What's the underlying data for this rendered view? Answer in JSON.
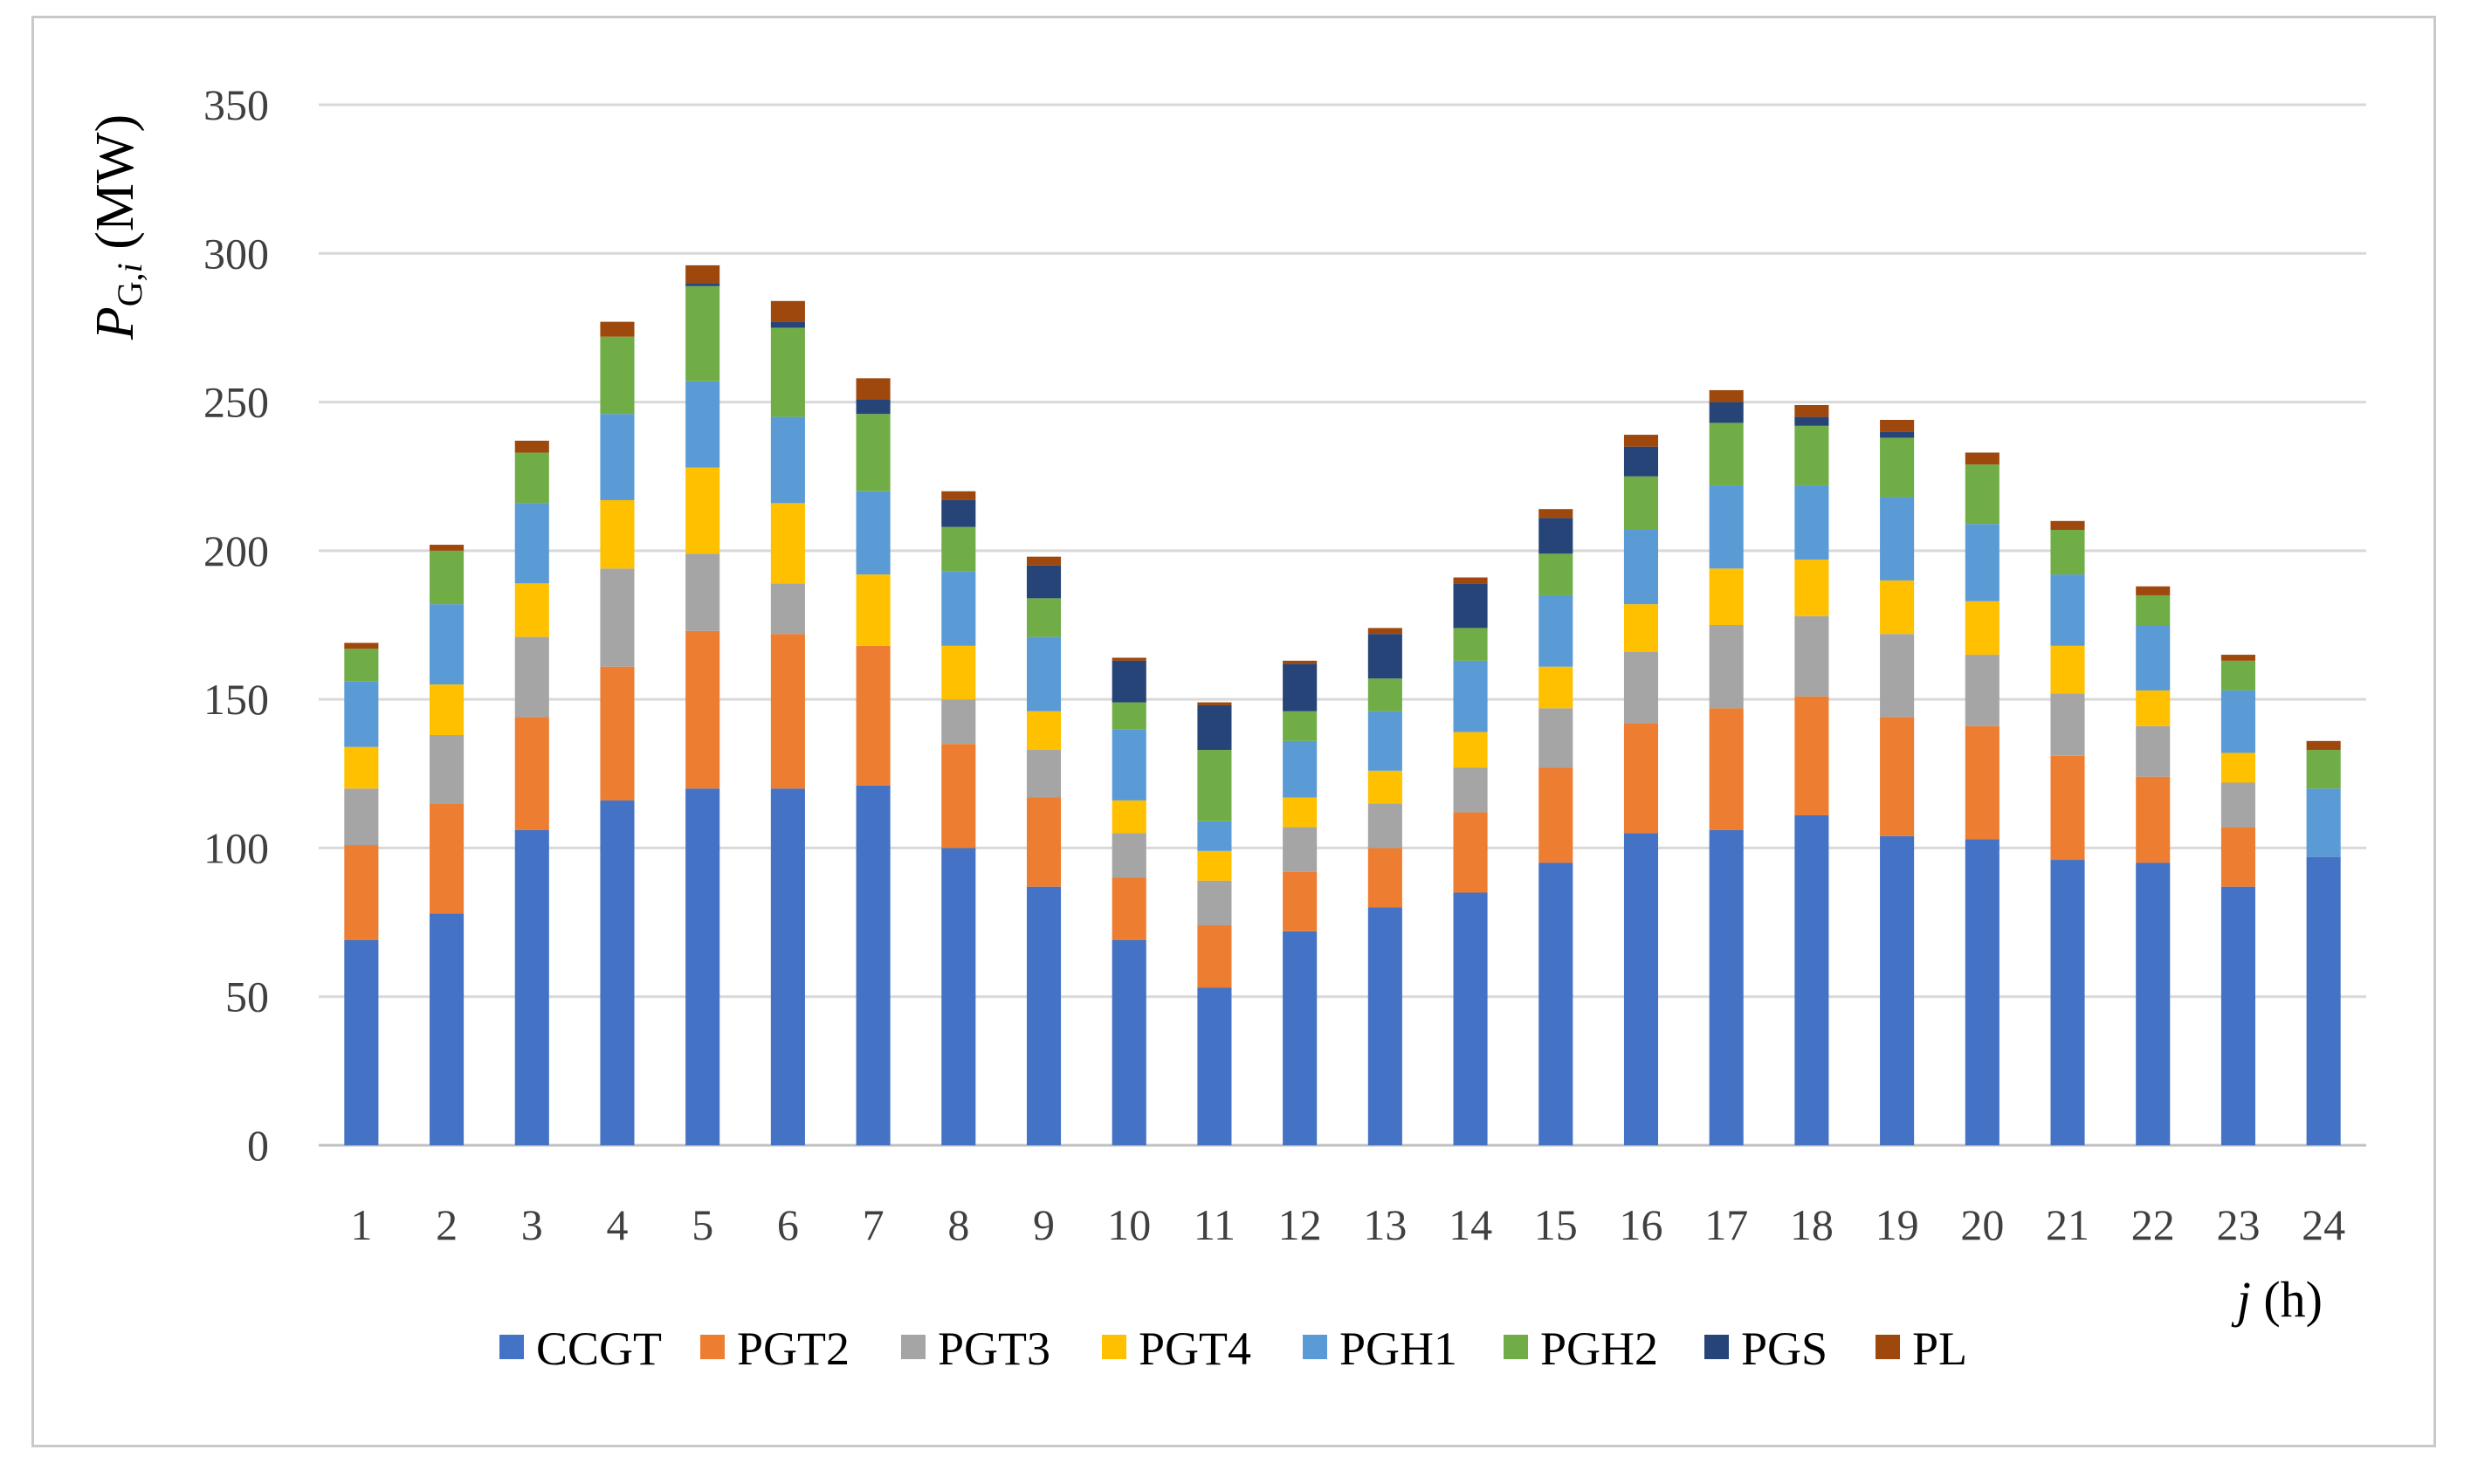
{
  "chart_data": {
    "type": "bar",
    "stacked": true,
    "title": "",
    "ylabel": "P_G,i (MW)",
    "ylabel_main": "P",
    "ylabel_sub": "G,",
    "ylabel_sub_italic": "i",
    "ylabel_unit": " (MW)",
    "xlabel": "j (h)",
    "xlabel_var": "j",
    "xlabel_unit": " (h)",
    "ylim": [
      0,
      350
    ],
    "yticks": [
      0,
      50,
      100,
      150,
      200,
      250,
      300,
      350
    ],
    "grid": true,
    "legend_position": "bottom",
    "categories": [
      "1",
      "2",
      "3",
      "4",
      "5",
      "6",
      "7",
      "8",
      "9",
      "10",
      "11",
      "12",
      "13",
      "14",
      "15",
      "16",
      "17",
      "18",
      "19",
      "20",
      "21",
      "22",
      "23",
      "24"
    ],
    "series": [
      {
        "name": "CCGT",
        "color": "#4472C4",
        "values": [
          69,
          78,
          106,
          116,
          120,
          120,
          121,
          100,
          87,
          69,
          53,
          72,
          80,
          85,
          95,
          105,
          106,
          111,
          104,
          103,
          96,
          95,
          87,
          97
        ]
      },
      {
        "name": "PGT2",
        "color": "#ED7D31",
        "values": [
          32,
          37,
          38,
          45,
          53,
          52,
          47,
          35,
          30,
          21,
          21,
          20,
          20,
          27,
          32,
          37,
          41,
          40,
          40,
          38,
          35,
          29,
          20,
          0
        ]
      },
      {
        "name": "PGT3",
        "color": "#A5A5A5",
        "values": [
          19,
          23,
          27,
          33,
          26,
          17,
          0,
          15,
          16,
          15,
          15,
          15,
          15,
          15,
          20,
          24,
          28,
          27,
          28,
          24,
          21,
          17,
          15,
          0
        ]
      },
      {
        "name": "PGT4",
        "color": "#FFC000",
        "values": [
          14,
          17,
          18,
          23,
          29,
          27,
          24,
          18,
          13,
          11,
          10,
          10,
          11,
          12,
          14,
          16,
          19,
          19,
          18,
          18,
          16,
          12,
          10,
          0
        ]
      },
      {
        "name": "PGH1",
        "color": "#5B9BD5",
        "values": [
          22,
          27,
          27,
          29,
          29,
          29,
          28,
          25,
          25,
          24,
          10,
          19,
          20,
          24,
          24,
          25,
          28,
          25,
          28,
          26,
          24,
          22,
          21,
          23
        ]
      },
      {
        "name": "PGH2",
        "color": "#70AD47",
        "values": [
          11,
          18,
          17,
          26,
          32,
          30,
          26,
          15,
          13,
          9,
          24,
          10,
          11,
          11,
          14,
          18,
          21,
          20,
          20,
          20,
          15,
          10,
          10,
          13
        ]
      },
      {
        "name": "PGS",
        "color": "#264478",
        "values": [
          0,
          0,
          0,
          0,
          1,
          2,
          5,
          9,
          11,
          14,
          15,
          16,
          15,
          15,
          12,
          10,
          7,
          3,
          2,
          0,
          0,
          0,
          0,
          0
        ]
      },
      {
        "name": "PL",
        "color": "#9E480E",
        "values": [
          2,
          2,
          4,
          5,
          6,
          7,
          7,
          3,
          3,
          1,
          1,
          1,
          2,
          2,
          3,
          4,
          4,
          4,
          4,
          4,
          3,
          3,
          2,
          3
        ]
      }
    ]
  }
}
